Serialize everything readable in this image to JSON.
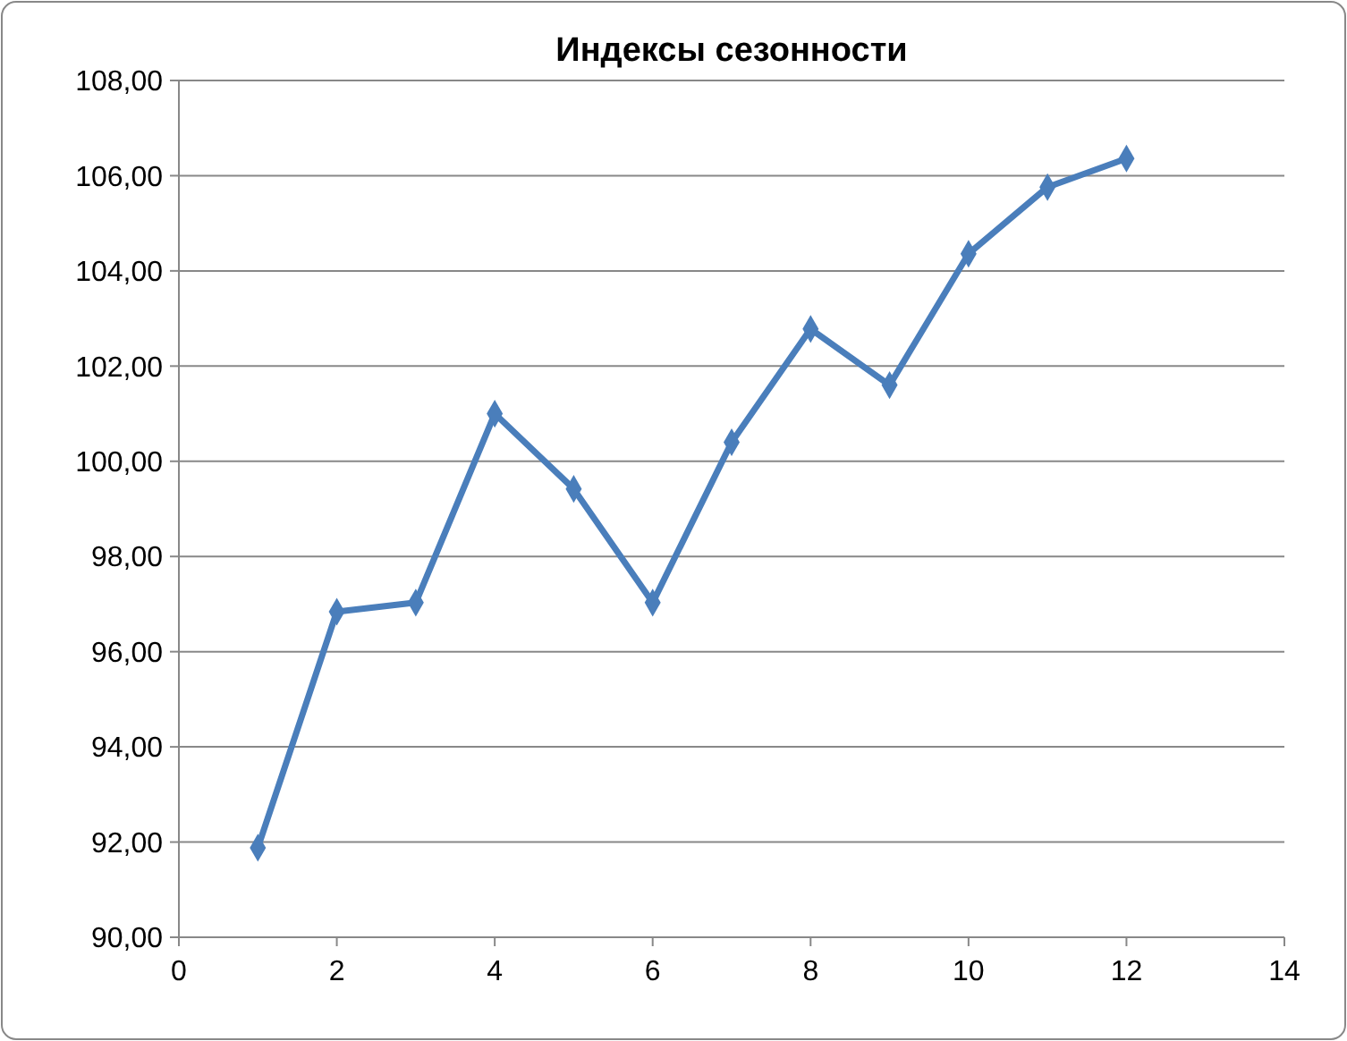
{
  "chart_data": {
    "type": "line",
    "title": "Индексы сезонности",
    "x": [
      1,
      2,
      3,
      4,
      5,
      6,
      7,
      8,
      9,
      10,
      11,
      12
    ],
    "series": [
      {
        "color": "#4a7ebb",
        "values": [
          91.88,
          96.84,
          97.03,
          101.0,
          99.42,
          97.03,
          100.4,
          102.78,
          101.6,
          104.36,
          105.76,
          106.36
        ]
      }
    ],
    "xlim": [
      0,
      14
    ],
    "xticks": [
      {
        "value": 0,
        "label": "0"
      },
      {
        "value": 2,
        "label": "2"
      },
      {
        "value": 4,
        "label": "4"
      },
      {
        "value": 6,
        "label": "6"
      },
      {
        "value": 8,
        "label": "8"
      },
      {
        "value": 10,
        "label": "10"
      },
      {
        "value": 12,
        "label": "12"
      },
      {
        "value": 14,
        "label": "14"
      }
    ],
    "ylim": [
      90,
      108
    ],
    "yticks": [
      {
        "value": 90,
        "label": "90,00"
      },
      {
        "value": 92,
        "label": "92,00"
      },
      {
        "value": 94,
        "label": "94,00"
      },
      {
        "value": 96,
        "label": "96,00"
      },
      {
        "value": 98,
        "label": "98,00"
      },
      {
        "value": 100,
        "label": "100,00"
      },
      {
        "value": 102,
        "label": "102,00"
      },
      {
        "value": 104,
        "label": "104,00"
      },
      {
        "value": 106,
        "label": "106,00"
      },
      {
        "value": 108,
        "label": "108,00"
      }
    ],
    "grid": "y",
    "marker": "diamond",
    "line_style": "solid"
  }
}
